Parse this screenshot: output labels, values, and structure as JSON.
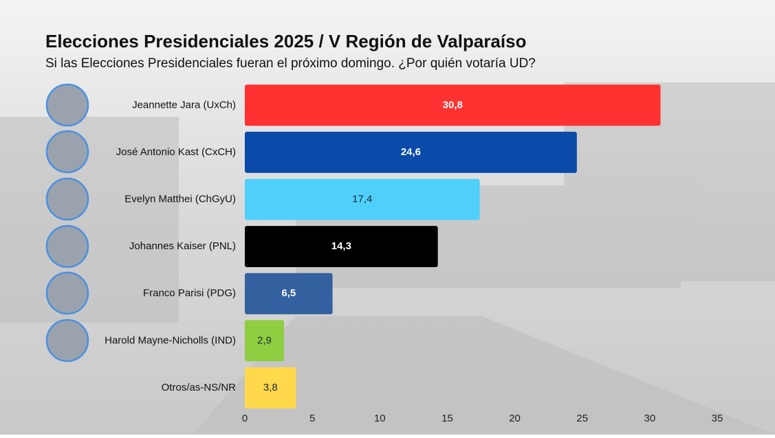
{
  "chart_data": {
    "type": "bar",
    "orientation": "horizontal",
    "title": "Elecciones Presidenciales 2025 / V Región de Valparaíso",
    "subtitle": "Si las Elecciones Presidenciales fueran el próximo domingo. ¿Por quién votaría UD?",
    "categories": [
      "Jeannette Jara (UxCh)",
      "José Antonio Kast (CxCH)",
      "Evelyn Matthei (ChGyU)",
      "Johannes Kaiser (PNL)",
      "Franco Parisi (PDG)",
      "Harold Mayne-Nicholls (IND)",
      "Otros/as-NS/NR"
    ],
    "values": [
      30.8,
      24.6,
      17.4,
      14.3,
      6.5,
      2.9,
      3.8
    ],
    "value_labels": [
      "30,8",
      "24,6",
      "17,4",
      "14,3",
      "6,5",
      "2,9",
      "3,8"
    ],
    "colors": [
      "#ff3131",
      "#0a4aa8",
      "#4fd0fb",
      "#000000",
      "#33609f",
      "#8fcd41",
      "#ffd84c"
    ],
    "xlim": [
      0,
      35
    ],
    "xticks": [
      0,
      5,
      10,
      15,
      20,
      25,
      30,
      35
    ],
    "grid": false
  }
}
